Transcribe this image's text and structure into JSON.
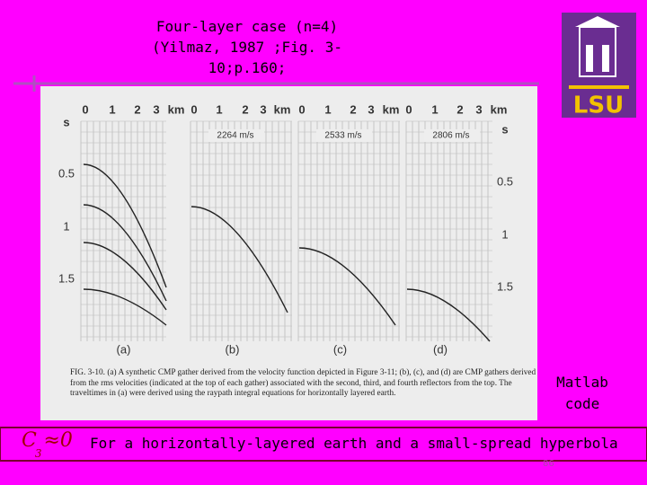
{
  "slide": {
    "title_lines": [
      "Four-layer case (n=4)",
      "(Yilmaz, 1987 ;Fig. 3-",
      "10;p.160;"
    ],
    "logo": "LSU",
    "figure": {
      "left_axis": [
        "s",
        "0.5",
        "1",
        "1.5"
      ],
      "right_axis": [
        "s",
        "0.5",
        "1",
        "1.5"
      ],
      "panels": [
        {
          "axis": [
            "0",
            "1",
            "2",
            "3",
            "km"
          ],
          "label": "(a)",
          "velocity": null
        },
        {
          "axis": [
            "0",
            "1",
            "2",
            "3",
            "km"
          ],
          "label": "(b)",
          "velocity": "2264 m/s"
        },
        {
          "axis": [
            "0",
            "1",
            "2",
            "3",
            "km"
          ],
          "label": "(c)",
          "velocity": "2533 m/s"
        },
        {
          "axis": [
            "0",
            "1",
            "2",
            "3",
            "km"
          ],
          "label": "(d)",
          "velocity": "2806 m/s"
        }
      ],
      "caption": "FIG. 3-10. (a) A synthetic CMP gather derived from the velocity function depicted in Figure 3-11; (b), (c), and (d) are CMP gathers derived from the rms velocities (indicated at the top of each gather) associated with the second, third, and fourth reflectors from the top. The traveltimes in (a) were derived using the raypath integral equations for horizontally layered earth."
    },
    "side_note": [
      "Matlab",
      "code"
    ],
    "formula": {
      "symbol": "C",
      "subscript": "3",
      "relation": "≈0"
    },
    "footer_text": "For a horizontally-layered earth and a small-spread hyperbola",
    "page_number": "86"
  }
}
